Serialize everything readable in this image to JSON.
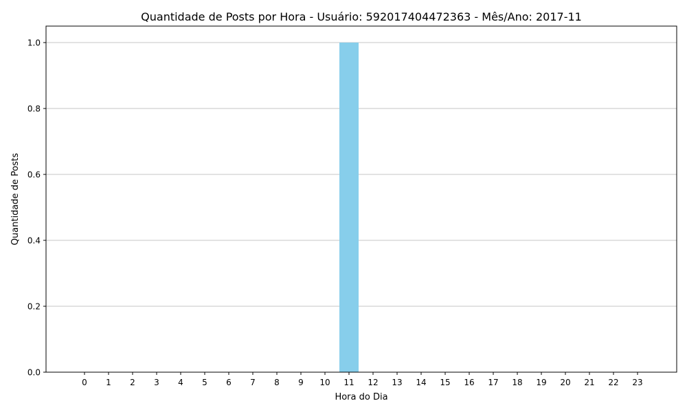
{
  "chart_data": {
    "type": "bar",
    "title": "Quantidade de Posts por Hora - Usuário: 592017404472363 - Mês/Ano: 2017-11",
    "xlabel": "Hora do Dia",
    "ylabel": "Quantidade de Posts",
    "categories": [
      "0",
      "1",
      "2",
      "3",
      "4",
      "5",
      "6",
      "7",
      "8",
      "9",
      "10",
      "11",
      "12",
      "13",
      "14",
      "15",
      "16",
      "17",
      "18",
      "19",
      "20",
      "21",
      "22",
      "23"
    ],
    "values": [
      0,
      0,
      0,
      0,
      0,
      0,
      0,
      0,
      0,
      0,
      0,
      1,
      0,
      0,
      0,
      0,
      0,
      0,
      0,
      0,
      0,
      0,
      0,
      0
    ],
    "ylim": [
      0,
      1.05
    ],
    "yticks": [
      "0.0",
      "0.2",
      "0.4",
      "0.6",
      "0.8",
      "1.0"
    ],
    "grid": "y",
    "bar_color": "#87CEEB"
  }
}
